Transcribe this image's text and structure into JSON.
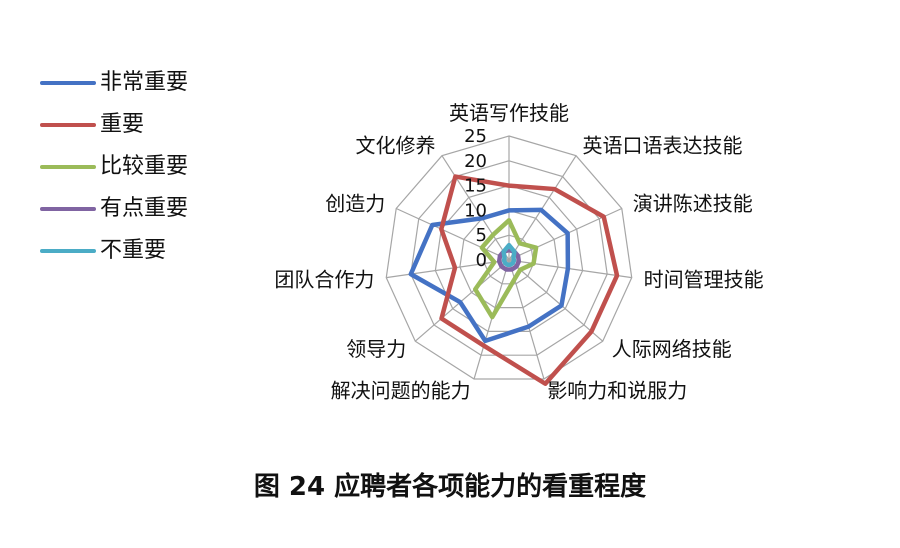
{
  "chart_data": {
    "type": "radar",
    "categories": [
      "英语写作技能",
      "英语口语表达技能",
      "演讲陈述技能",
      "时间管理技能",
      "人际网络技能",
      "影响力和说服力",
      "解决问题的能力",
      "领导力",
      "团队合作力",
      "创造力",
      "文化修养"
    ],
    "ticks": [
      "0",
      "5",
      "10",
      "15",
      "20",
      "25"
    ],
    "rmax": 25,
    "series": [
      {
        "name": "非常重要",
        "color": "#4472c4",
        "values": [
          10,
          12,
          13,
          12,
          14,
          14,
          17,
          13,
          20,
          17,
          10
        ]
      },
      {
        "name": "重要",
        "color": "#c0504d",
        "values": [
          15,
          17,
          21,
          22,
          22,
          26,
          18,
          18,
          11,
          15,
          20
        ]
      },
      {
        "name": "比较重要",
        "color": "#9bbb59",
        "values": [
          8,
          4,
          6,
          5,
          3,
          4,
          12,
          9,
          3,
          6,
          6
        ]
      },
      {
        "name": "有点重要",
        "color": "#8064a2",
        "values": [
          2,
          2,
          2,
          2,
          2,
          2,
          2,
          2,
          2,
          2,
          2
        ]
      },
      {
        "name": "不重要",
        "color": "#4bacc6",
        "values": [
          3,
          2,
          1,
          1,
          1,
          1,
          1,
          1,
          1,
          1,
          2
        ]
      }
    ]
  },
  "caption": "图 24  应聘者各项能力的看重程度"
}
